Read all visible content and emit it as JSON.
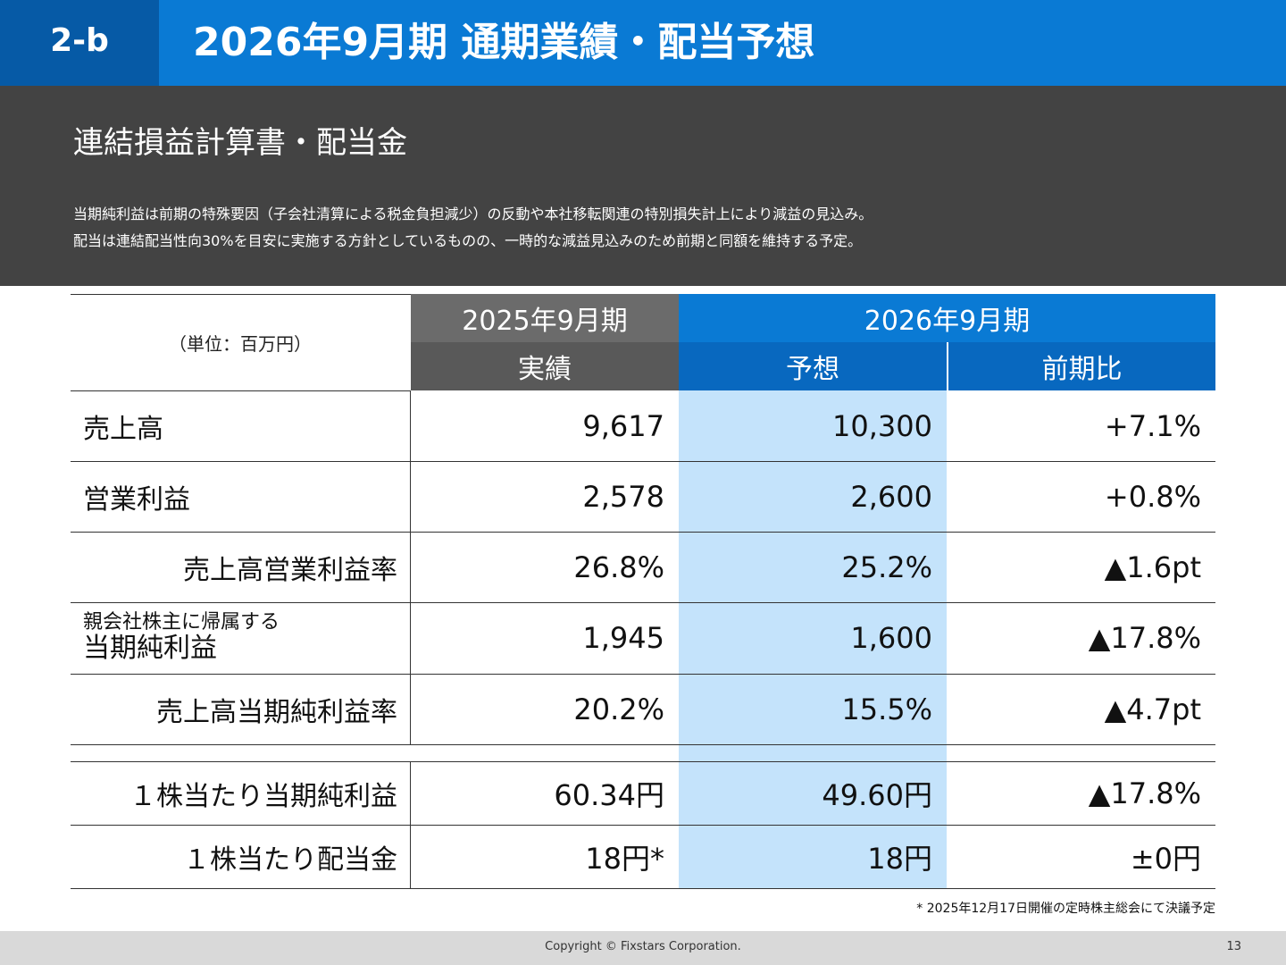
{
  "header": {
    "section": "2-b",
    "title": "2026年9月期 通期業績・配当予想"
  },
  "band": {
    "subtitle": "連結損益計算書・配当金",
    "desc1": "当期純利益は前期の特殊要因（子会社清算による税金負担減少）の反動や本社移転関連の特別損失計上により減益の見込み。",
    "desc2": "配当は連結配当性向30%を目安に実施する方針としているものの、一時的な減益見込みのため前期と同額を維持する予定。"
  },
  "table": {
    "unit": "（単位：百万円）",
    "period_prev": "2025年9月期",
    "period_next": "2026年9月期",
    "col_actual": "実績",
    "col_forecast": "予想",
    "col_yoy": "前期比",
    "rows": [
      {
        "label": "売上高",
        "actual": "9,617",
        "forecast": "10,300",
        "yoy": "+7.1%"
      },
      {
        "label": "営業利益",
        "actual": "2,578",
        "forecast": "2,600",
        "yoy": "+0.8%"
      },
      {
        "label": "売上高営業利益率",
        "actual": "26.8%",
        "forecast": "25.2%",
        "yoy": "▲1.6pt"
      },
      {
        "label_small": "親会社株主に帰属する",
        "label": "当期純利益",
        "actual": "1,945",
        "forecast": "1,600",
        "yoy": "▲17.8%"
      },
      {
        "label": "売上高当期純利益率",
        "actual": "20.2%",
        "forecast": "15.5%",
        "yoy": "▲4.7pt"
      },
      {
        "label": "１株当たり当期純利益",
        "actual": "60.34円",
        "forecast": "49.60円",
        "yoy": "▲17.8%"
      },
      {
        "label": "１株当たり配当金",
        "actual": "18円*",
        "forecast": "18円",
        "yoy": "±0円"
      }
    ]
  },
  "footnote": "* 2025年12月17日開催の定時株主総会にて決議予定",
  "footer": {
    "copyright": "Copyright © Fixstars Corporation.",
    "page": "13"
  }
}
